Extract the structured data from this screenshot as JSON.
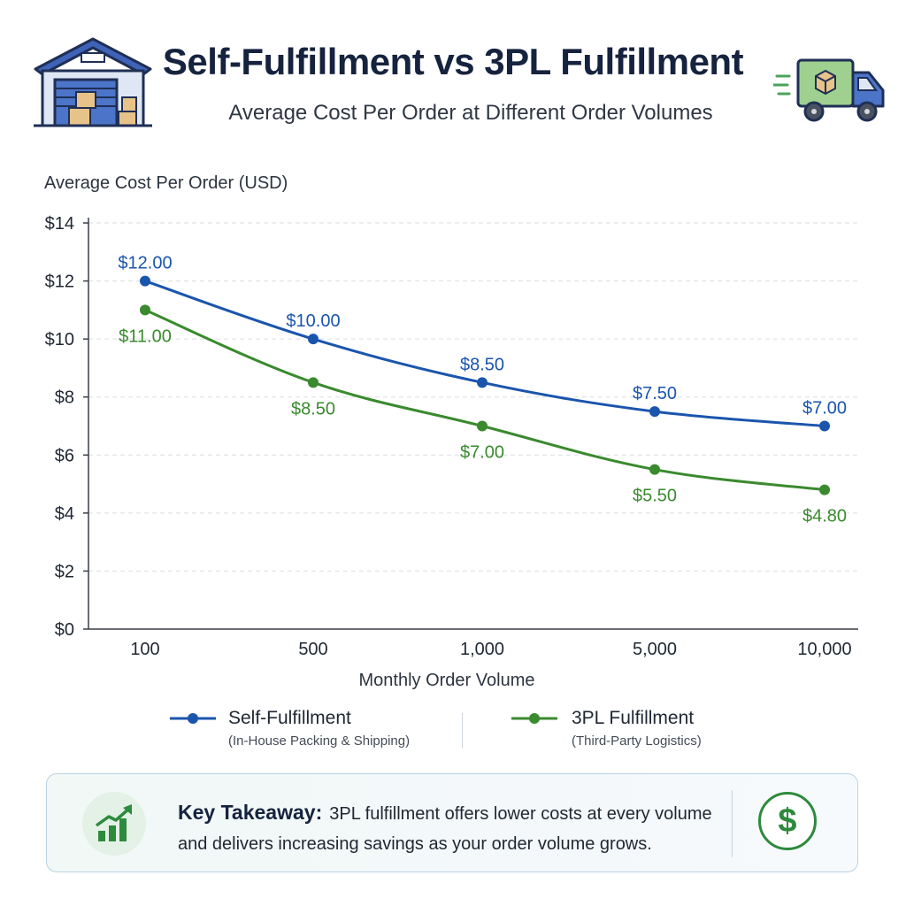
{
  "header": {
    "title": "Self-Fulfillment vs 3PL Fulfillment",
    "subtitle": "Average Cost Per Order at Different Order Volumes",
    "left_icon": "warehouse-icon",
    "right_icon": "delivery-truck-icon"
  },
  "colors": {
    "self": "#1a55ad",
    "threepl": "#3a8a2e",
    "title": "#16233f",
    "grid": "#d9dde2"
  },
  "chart_data": {
    "type": "line",
    "ylabel": "Average Cost Per Order (USD)",
    "xlabel": "Monthly Order Volume",
    "categories": [
      "100",
      "500",
      "1,000",
      "5,000",
      "10,000"
    ],
    "ylim": [
      0,
      14
    ],
    "yticks": [
      "$0",
      "$2",
      "$4",
      "$6",
      "$8",
      "$10",
      "$12",
      "$14"
    ],
    "grid": true,
    "series": [
      {
        "name": "Self-Fulfillment",
        "values": [
          12.0,
          10.0,
          8.5,
          7.5,
          7.0
        ],
        "labels": [
          "$12.00",
          "$10.00",
          "$8.50",
          "$7.50",
          "$7.00"
        ]
      },
      {
        "name": "3PL Fulfillment",
        "values": [
          11.0,
          8.5,
          7.0,
          5.5,
          4.8
        ],
        "labels": [
          "$11.00",
          "$8.50",
          "$7.00",
          "$5.50",
          "$4.80"
        ]
      }
    ]
  },
  "legend": {
    "self_name": "Self-Fulfillment",
    "self_sub": "(In-House Packing & Shipping)",
    "threepl_name": "3PL Fulfillment",
    "threepl_sub": "(Third-Party Logistics)"
  },
  "takeaway": {
    "label": "Key Takeaway:",
    "text": "3PL fulfillment offers lower costs at every volume and delivers increasing savings as your order volume grows.",
    "left_icon": "growth-chart-icon",
    "right_icon": "dollar-icon",
    "dollar_symbol": "$"
  }
}
